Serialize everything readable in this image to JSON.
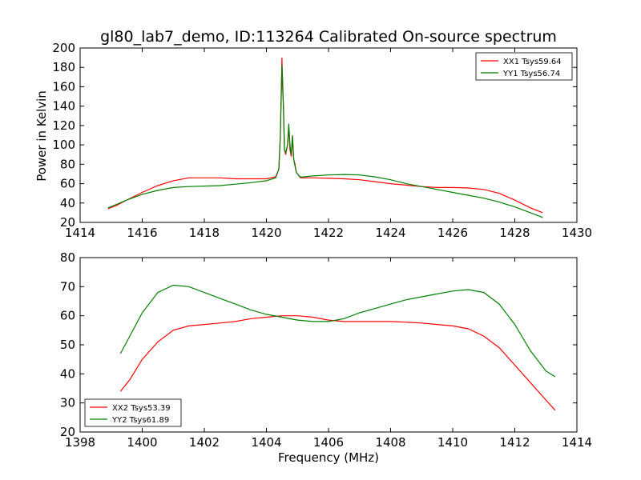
{
  "figure_title": "gl80_lab7_demo, ID:113264 Calibrated On-source spectrum",
  "colors": {
    "red": "#ff0000",
    "green": "#008000"
  },
  "chart_data": [
    {
      "type": "line",
      "title": "gl80_lab7_demo, ID:113264 Calibrated On-source spectrum",
      "xlabel": "",
      "ylabel": "Power in Kelvin",
      "xlim": [
        1414,
        1430
      ],
      "ylim": [
        20,
        200
      ],
      "xticks": [
        1414,
        1416,
        1418,
        1420,
        1422,
        1424,
        1426,
        1428,
        1430
      ],
      "yticks": [
        20,
        40,
        60,
        80,
        100,
        120,
        140,
        160,
        180,
        200
      ],
      "grid": false,
      "legend": "top-right",
      "series": [
        {
          "name": "XX1 Tsys59.64",
          "color": "#ff0000",
          "x": [
            1414.9,
            1415.2,
            1415.5,
            1416.0,
            1416.5,
            1417.0,
            1417.5,
            1418.0,
            1418.5,
            1419.0,
            1419.5,
            1420.0,
            1420.3,
            1420.4,
            1420.45,
            1420.5,
            1420.52,
            1420.55,
            1420.58,
            1420.62,
            1420.68,
            1420.72,
            1420.76,
            1420.8,
            1420.84,
            1420.88,
            1420.92,
            1420.96,
            1421.0,
            1421.05,
            1421.1,
            1421.2,
            1421.5,
            1422.0,
            1422.5,
            1423.0,
            1423.5,
            1424.0,
            1424.5,
            1425.0,
            1425.5,
            1426.0,
            1426.5,
            1427.0,
            1427.5,
            1428.0,
            1428.5,
            1428.9
          ],
          "y": [
            34,
            38,
            43,
            51,
            58,
            63,
            66,
            66,
            66,
            65,
            65,
            65,
            67,
            75,
            110,
            190,
            160,
            140,
            95,
            90,
            100,
            118,
            95,
            88,
            108,
            85,
            80,
            72,
            70,
            68,
            66,
            66,
            66,
            65.5,
            65,
            64,
            62,
            60,
            58.5,
            57,
            56,
            56,
            55.5,
            54,
            50,
            43,
            35,
            30
          ]
        },
        {
          "name": "YY1 Tsys56.74",
          "color": "#008000",
          "x": [
            1414.9,
            1415.2,
            1415.5,
            1416.0,
            1416.5,
            1417.0,
            1417.5,
            1418.0,
            1418.5,
            1419.0,
            1419.5,
            1420.0,
            1420.3,
            1420.4,
            1420.45,
            1420.5,
            1420.52,
            1420.55,
            1420.58,
            1420.62,
            1420.68,
            1420.72,
            1420.76,
            1420.8,
            1420.84,
            1420.88,
            1420.92,
            1420.96,
            1421.0,
            1421.05,
            1421.1,
            1421.2,
            1421.5,
            1422.0,
            1422.5,
            1423.0,
            1423.5,
            1424.0,
            1424.5,
            1425.0,
            1425.5,
            1426.0,
            1426.5,
            1427.0,
            1427.5,
            1428.0,
            1428.5,
            1428.9
          ],
          "y": [
            35,
            39,
            43,
            49,
            53,
            56,
            57,
            57.5,
            58,
            59.5,
            61,
            63,
            66,
            75,
            110,
            182,
            170,
            135,
            95,
            92,
            100,
            122,
            100,
            90,
            110,
            85,
            78,
            72,
            70,
            68,
            67,
            67,
            68,
            69,
            69.5,
            69,
            67,
            64,
            60,
            57,
            54,
            51,
            48,
            45,
            41,
            36,
            30,
            25
          ]
        }
      ]
    },
    {
      "type": "line",
      "title": "",
      "xlabel": "Frequency (MHz)",
      "ylabel": "",
      "xlim": [
        1398,
        1414
      ],
      "ylim": [
        20,
        80
      ],
      "xticks": [
        1398,
        1400,
        1402,
        1404,
        1406,
        1408,
        1410,
        1412,
        1414
      ],
      "yticks": [
        20,
        30,
        40,
        50,
        60,
        70,
        80
      ],
      "grid": false,
      "legend": "bottom-left",
      "series": [
        {
          "name": "XX2 Tsys53.39",
          "color": "#ff0000",
          "x": [
            1399.3,
            1399.6,
            1400.0,
            1400.5,
            1401.0,
            1401.5,
            1402.0,
            1402.5,
            1403.0,
            1403.5,
            1404.0,
            1404.5,
            1405.0,
            1405.5,
            1406.0,
            1406.5,
            1407.0,
            1407.5,
            1408.0,
            1408.5,
            1409.0,
            1409.5,
            1410.0,
            1410.5,
            1411.0,
            1411.5,
            1412.0,
            1412.5,
            1413.0,
            1413.3
          ],
          "y": [
            34,
            38,
            45,
            51,
            55,
            56.5,
            57,
            57.5,
            58,
            59,
            59.5,
            60,
            60,
            59.5,
            58.5,
            58,
            58,
            58,
            58,
            57.8,
            57.5,
            57,
            56.5,
            55.5,
            53,
            49,
            43,
            37,
            31,
            27.5
          ]
        },
        {
          "name": "YY2 Tsys61.89",
          "color": "#008000",
          "x": [
            1399.3,
            1399.6,
            1400.0,
            1400.5,
            1401.0,
            1401.5,
            1402.0,
            1402.5,
            1403.0,
            1403.5,
            1404.0,
            1404.5,
            1405.0,
            1405.5,
            1406.0,
            1406.5,
            1407.0,
            1407.5,
            1408.0,
            1408.5,
            1409.0,
            1409.5,
            1410.0,
            1410.5,
            1411.0,
            1411.5,
            1412.0,
            1412.5,
            1413.0,
            1413.3
          ],
          "y": [
            47,
            53,
            61,
            68,
            70.5,
            70,
            68,
            66,
            64,
            62,
            60.5,
            59.5,
            58.5,
            58,
            58,
            59,
            61,
            62.5,
            64,
            65.5,
            66.5,
            67.5,
            68.5,
            69,
            68,
            64,
            57,
            48,
            41,
            39
          ]
        }
      ]
    }
  ]
}
